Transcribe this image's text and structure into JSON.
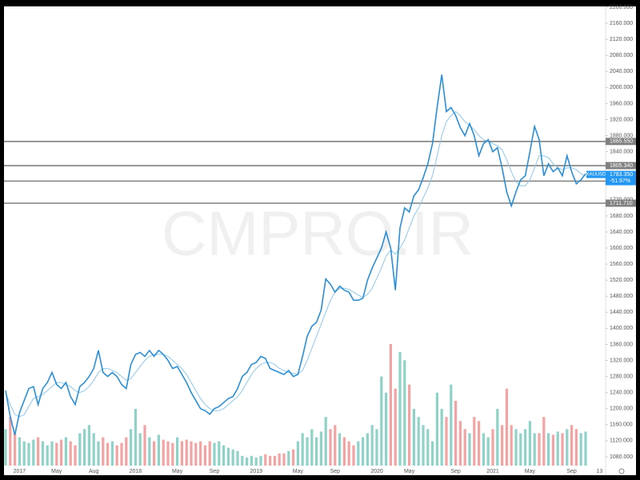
{
  "chart_data": {
    "type": "line",
    "symbol": "XAUUSD",
    "watermark": "CMPRO.IR",
    "categories": [
      null,
      null,
      null,
      "2017",
      null,
      null,
      null,
      null,
      null,
      null,
      null,
      "May",
      null,
      null,
      null,
      null,
      null,
      null,
      null,
      "Aug",
      null,
      null,
      null,
      null,
      null,
      null,
      null,
      null,
      "2018",
      null,
      null,
      null,
      null,
      null,
      null,
      null,
      null,
      "May",
      null,
      null,
      null,
      null,
      null,
      null,
      null,
      "Sep",
      null,
      null,
      null,
      null,
      null,
      null,
      null,
      null,
      "2019",
      null,
      null,
      null,
      null,
      null,
      null,
      null,
      null,
      "May",
      null,
      null,
      null,
      null,
      null,
      null,
      null,
      "Sep",
      null,
      null,
      null,
      null,
      null,
      null,
      null,
      null,
      "2020",
      null,
      null,
      null,
      null,
      null,
      null,
      "May",
      null,
      null,
      null,
      null,
      null,
      null,
      null,
      null,
      null,
      "Sep",
      null,
      null,
      null,
      null,
      null,
      null,
      null,
      "2021",
      null,
      null,
      null,
      null,
      null,
      null,
      null,
      "May",
      null,
      null,
      null,
      null,
      null,
      null,
      null,
      null,
      "Sep",
      null,
      null,
      null,
      null,
      null,
      "13",
      null
    ],
    "series": [
      {
        "color": "#2a8fd6",
        "width": 1.6,
        "values": [
          1245,
          1180,
          1135,
          1190,
          1220,
          1250,
          1255,
          1210,
          1250,
          1265,
          1290,
          1260,
          1250,
          1265,
          1230,
          1210,
          1255,
          1265,
          1280,
          1300,
          1345,
          1290,
          1280,
          1290,
          1280,
          1260,
          1250,
          1310,
          1335,
          1340,
          1330,
          1345,
          1330,
          1345,
          1335,
          1320,
          1300,
          1305,
          1285,
          1265,
          1240,
          1220,
          1200,
          1195,
          1186,
          1200,
          1205,
          1215,
          1225,
          1230,
          1250,
          1280,
          1290,
          1310,
          1315,
          1330,
          1325,
          1300,
          1295,
          1290,
          1285,
          1295,
          1280,
          1285,
          1330,
          1380,
          1405,
          1415,
          1445,
          1523,
          1510,
          1490,
          1505,
          1495,
          1490,
          1470,
          1470,
          1475,
          1520,
          1550,
          1575,
          1600,
          1640,
          1600,
          1495,
          1650,
          1700,
          1690,
          1730,
          1745,
          1775,
          1810,
          1860,
          1950,
          2032,
          1940,
          1950,
          1930,
          1900,
          1880,
          1910,
          1880,
          1830,
          1860,
          1870,
          1840,
          1850,
          1800,
          1740,
          1705,
          1740,
          1770,
          1780,
          1840,
          1903,
          1870,
          1780,
          1810,
          1790,
          1800,
          1780,
          1830,
          1790,
          1760,
          1770,
          1785,
          null,
          null,
          null,
          null
        ]
      },
      {
        "color": "#8cc8ee",
        "width": 1,
        "values": [
          1240,
          1210,
          1185,
          1180,
          1185,
          1205,
          1225,
          1230,
          1235,
          1245,
          1255,
          1265,
          1265,
          1260,
          1255,
          1245,
          1240,
          1245,
          1255,
          1270,
          1290,
          1300,
          1300,
          1295,
          1290,
          1280,
          1270,
          1275,
          1290,
          1305,
          1320,
          1330,
          1335,
          1335,
          1335,
          1330,
          1320,
          1310,
          1300,
          1285,
          1265,
          1245,
          1225,
          1210,
          1200,
          1195,
          1195,
          1200,
          1210,
          1220,
          1230,
          1245,
          1265,
          1285,
          1300,
          1310,
          1315,
          1315,
          1310,
          1300,
          1295,
          1290,
          1288,
          1286,
          1295,
          1320,
          1350,
          1380,
          1410,
          1440,
          1470,
          1490,
          1500,
          1500,
          1497,
          1490,
          1483,
          1477,
          1485,
          1500,
          1525,
          1550,
          1580,
          1595,
          1585,
          1600,
          1620,
          1650,
          1680,
          1700,
          1725,
          1750,
          1780,
          1830,
          1880,
          1915,
          1930,
          1940,
          1930,
          1915,
          1905,
          1895,
          1880,
          1870,
          1865,
          1860,
          1855,
          1845,
          1820,
          1790,
          1765,
          1755,
          1755,
          1770,
          1800,
          1830,
          1830,
          1825,
          1810,
          1800,
          1795,
          1800,
          1800,
          1795,
          1785,
          1780,
          null,
          null,
          null,
          null
        ]
      }
    ],
    "volume": {
      "up_color": "#8fd3c8",
      "down_color": "#f4a3a3",
      "values": [
        45,
        60,
        40,
        35,
        30,
        28,
        32,
        35,
        30,
        25,
        30,
        28,
        32,
        35,
        30,
        25,
        40,
        45,
        50,
        40,
        30,
        35,
        28,
        30,
        25,
        28,
        35,
        45,
        70,
        40,
        50,
        35,
        30,
        38,
        32,
        30,
        28,
        35,
        30,
        32,
        30,
        28,
        30,
        25,
        30,
        28,
        30,
        25,
        22,
        20,
        18,
        12,
        10,
        12,
        10,
        12,
        14,
        12,
        12,
        15,
        15,
        18,
        20,
        30,
        40,
        35,
        45,
        35,
        42,
        60,
        45,
        50,
        40,
        35,
        30,
        25,
        30,
        35,
        40,
        50,
        45,
        110,
        90,
        150,
        95,
        140,
        130,
        100,
        70,
        60,
        50,
        45,
        30,
        90,
        70,
        60,
        100,
        80,
        55,
        45,
        40,
        60,
        55,
        40,
        35,
        45,
        70,
        50,
        95,
        50,
        45,
        40,
        45,
        55,
        40,
        40,
        60,
        40,
        38,
        42,
        40,
        45,
        50,
        45,
        40,
        42,
        null,
        null,
        null,
        null
      ]
    },
    "ylim": [
      1058,
      2202
    ],
    "yticks": [
      {
        "value": 1080,
        "label": "1080.000"
      },
      {
        "value": 1120,
        "label": "1120.000"
      },
      {
        "value": 1160,
        "label": "1160.000"
      },
      {
        "value": 1200,
        "label": "1200.000"
      },
      {
        "value": 1240,
        "label": "1240.000"
      },
      {
        "value": 1280,
        "label": "1280.000"
      },
      {
        "value": 1320,
        "label": "1320.000"
      },
      {
        "value": 1360,
        "label": "1360.000"
      },
      {
        "value": 1400,
        "label": "1400.000"
      },
      {
        "value": 1440,
        "label": "1440.000"
      },
      {
        "value": 1480,
        "label": "1480.000"
      },
      {
        "value": 1520,
        "label": "1520.000"
      },
      {
        "value": 1560,
        "label": "1560.000"
      },
      {
        "value": 1600,
        "label": "1600.000"
      },
      {
        "value": 1640,
        "label": "1640.000"
      },
      {
        "value": 1680,
        "label": "1680.000"
      },
      {
        "value": 1720,
        "label": "1720.000"
      },
      {
        "value": 1760,
        "label": "1760.000"
      },
      {
        "value": 1800,
        "label": "1800.000"
      },
      {
        "value": 1840,
        "label": "1840.000"
      },
      {
        "value": 1880,
        "label": "1880.000"
      },
      {
        "value": 1920,
        "label": "1920.000"
      },
      {
        "value": 1960,
        "label": "1960.000"
      },
      {
        "value": 2000,
        "label": "2000.000"
      },
      {
        "value": 2040,
        "label": "2040.000"
      },
      {
        "value": 2080,
        "label": "2080.000"
      },
      {
        "value": 2120,
        "label": "2120.000"
      },
      {
        "value": 2160,
        "label": "2160.000"
      },
      {
        "value": 2200,
        "label": "2200.000"
      }
    ],
    "levels": [
      {
        "value": 1865.55,
        "label": "1865.550"
      },
      {
        "value": 1805.34,
        "label": "1805.340"
      },
      {
        "value": 1766.78,
        "label": "1766.780"
      },
      {
        "value": 1711.71,
        "label": "1711.710"
      }
    ],
    "last": {
      "value": 1783.35,
      "label": "1783.350",
      "change": "-51.97%",
      "color": "#2196f3"
    },
    "level_color": "#808080",
    "grid": false
  }
}
